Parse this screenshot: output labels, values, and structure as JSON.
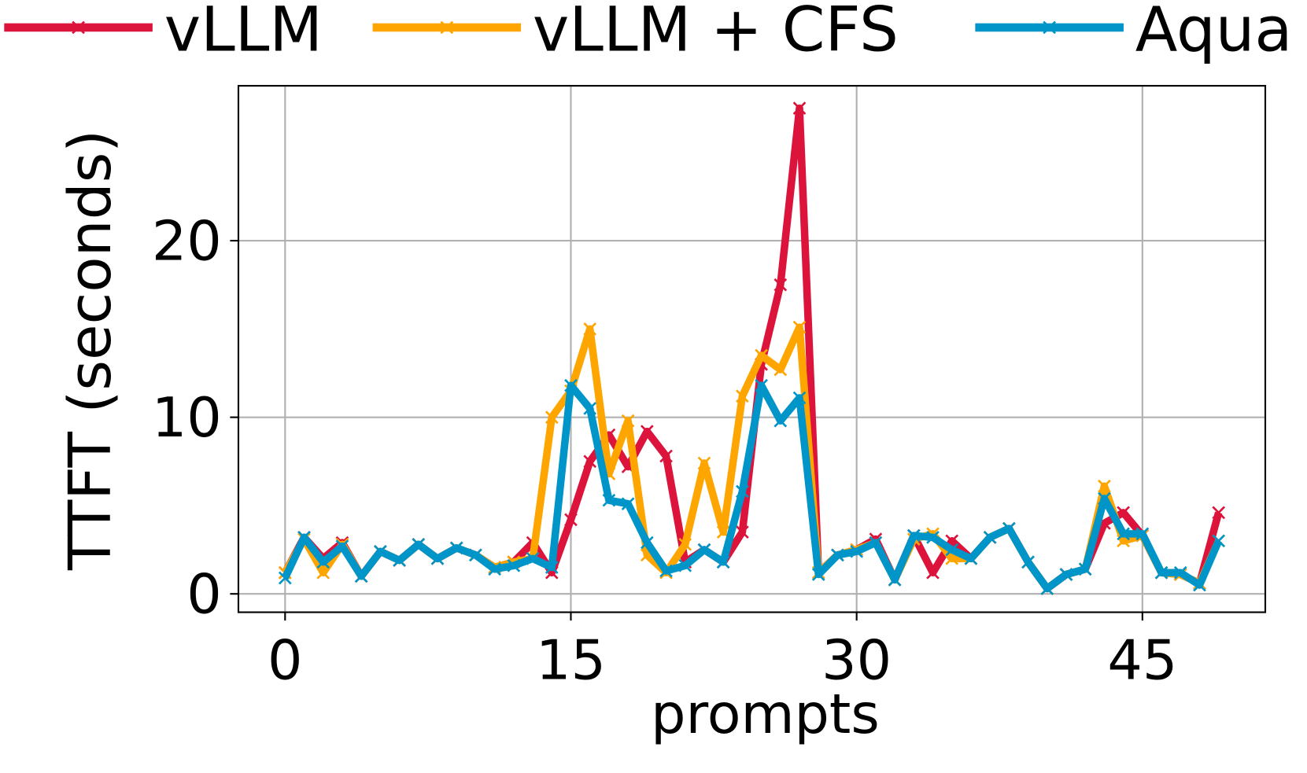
{
  "chart_data": {
    "type": "line",
    "xlabel": "prompts",
    "ylabel": "TTFT (seconds)",
    "x": [
      0,
      1,
      2,
      3,
      4,
      5,
      6,
      7,
      8,
      9,
      10,
      11,
      12,
      13,
      14,
      15,
      16,
      17,
      18,
      19,
      20,
      21,
      22,
      23,
      24,
      25,
      26,
      27,
      28,
      29,
      30,
      31,
      32,
      33,
      34,
      35,
      36,
      37,
      38,
      39,
      40,
      41,
      42,
      43,
      44,
      45,
      46,
      47,
      48,
      49
    ],
    "series": [
      {
        "name": "vLLM",
        "color": "#dc143c",
        "values": [
          1.2,
          3.2,
          2.0,
          2.9,
          1.0,
          2.4,
          1.9,
          2.8,
          2.0,
          2.6,
          2.2,
          1.5,
          1.8,
          2.9,
          1.2,
          4.2,
          7.5,
          9.0,
          7.2,
          9.2,
          7.8,
          1.8,
          2.5,
          1.8,
          3.5,
          13.0,
          17.5,
          27.5,
          1.2,
          2.2,
          2.5,
          3.1,
          0.8,
          3.3,
          1.2,
          3.0,
          2.0,
          3.2,
          3.7,
          1.8,
          0.3,
          1.1,
          1.4,
          4.0,
          4.6,
          3.3,
          1.2,
          1.1,
          0.6,
          4.6
        ]
      },
      {
        "name": "vLLM + CFS",
        "color": "#ffa500",
        "values": [
          1.2,
          3.1,
          1.2,
          2.8,
          1.0,
          2.4,
          1.9,
          2.8,
          2.0,
          2.6,
          2.2,
          1.5,
          1.8,
          2.0,
          10.0,
          11.5,
          15.0,
          6.8,
          9.8,
          2.2,
          1.2,
          2.8,
          7.4,
          3.5,
          11.2,
          13.5,
          12.7,
          15.1,
          1.2,
          2.2,
          2.5,
          2.9,
          0.8,
          3.1,
          3.4,
          2.0,
          2.0,
          3.2,
          3.7,
          1.8,
          0.3,
          1.1,
          1.4,
          6.1,
          3.0,
          3.3,
          1.2,
          1.1,
          0.6,
          3.0
        ]
      },
      {
        "name": "Aqua",
        "color": "#0095c8",
        "values": [
          0.9,
          3.2,
          1.8,
          2.7,
          1.0,
          2.4,
          1.9,
          2.8,
          2.0,
          2.6,
          2.2,
          1.4,
          1.6,
          2.0,
          1.5,
          11.8,
          10.5,
          5.3,
          5.1,
          2.9,
          1.3,
          1.6,
          2.5,
          1.8,
          5.8,
          11.8,
          9.8,
          11.1,
          1.1,
          2.2,
          2.4,
          2.9,
          0.8,
          3.3,
          3.2,
          2.5,
          2.0,
          3.2,
          3.7,
          1.8,
          0.3,
          1.1,
          1.4,
          5.4,
          3.4,
          3.4,
          1.2,
          1.2,
          0.5,
          3.0
        ]
      }
    ],
    "xlim": [
      -2.45,
      51.45
    ],
    "ylim": [
      -1.04,
      28.77
    ],
    "xticks": [
      0,
      15,
      30,
      45
    ],
    "yticks": [
      0,
      10,
      20
    ],
    "grid": true,
    "legend": "top"
  }
}
